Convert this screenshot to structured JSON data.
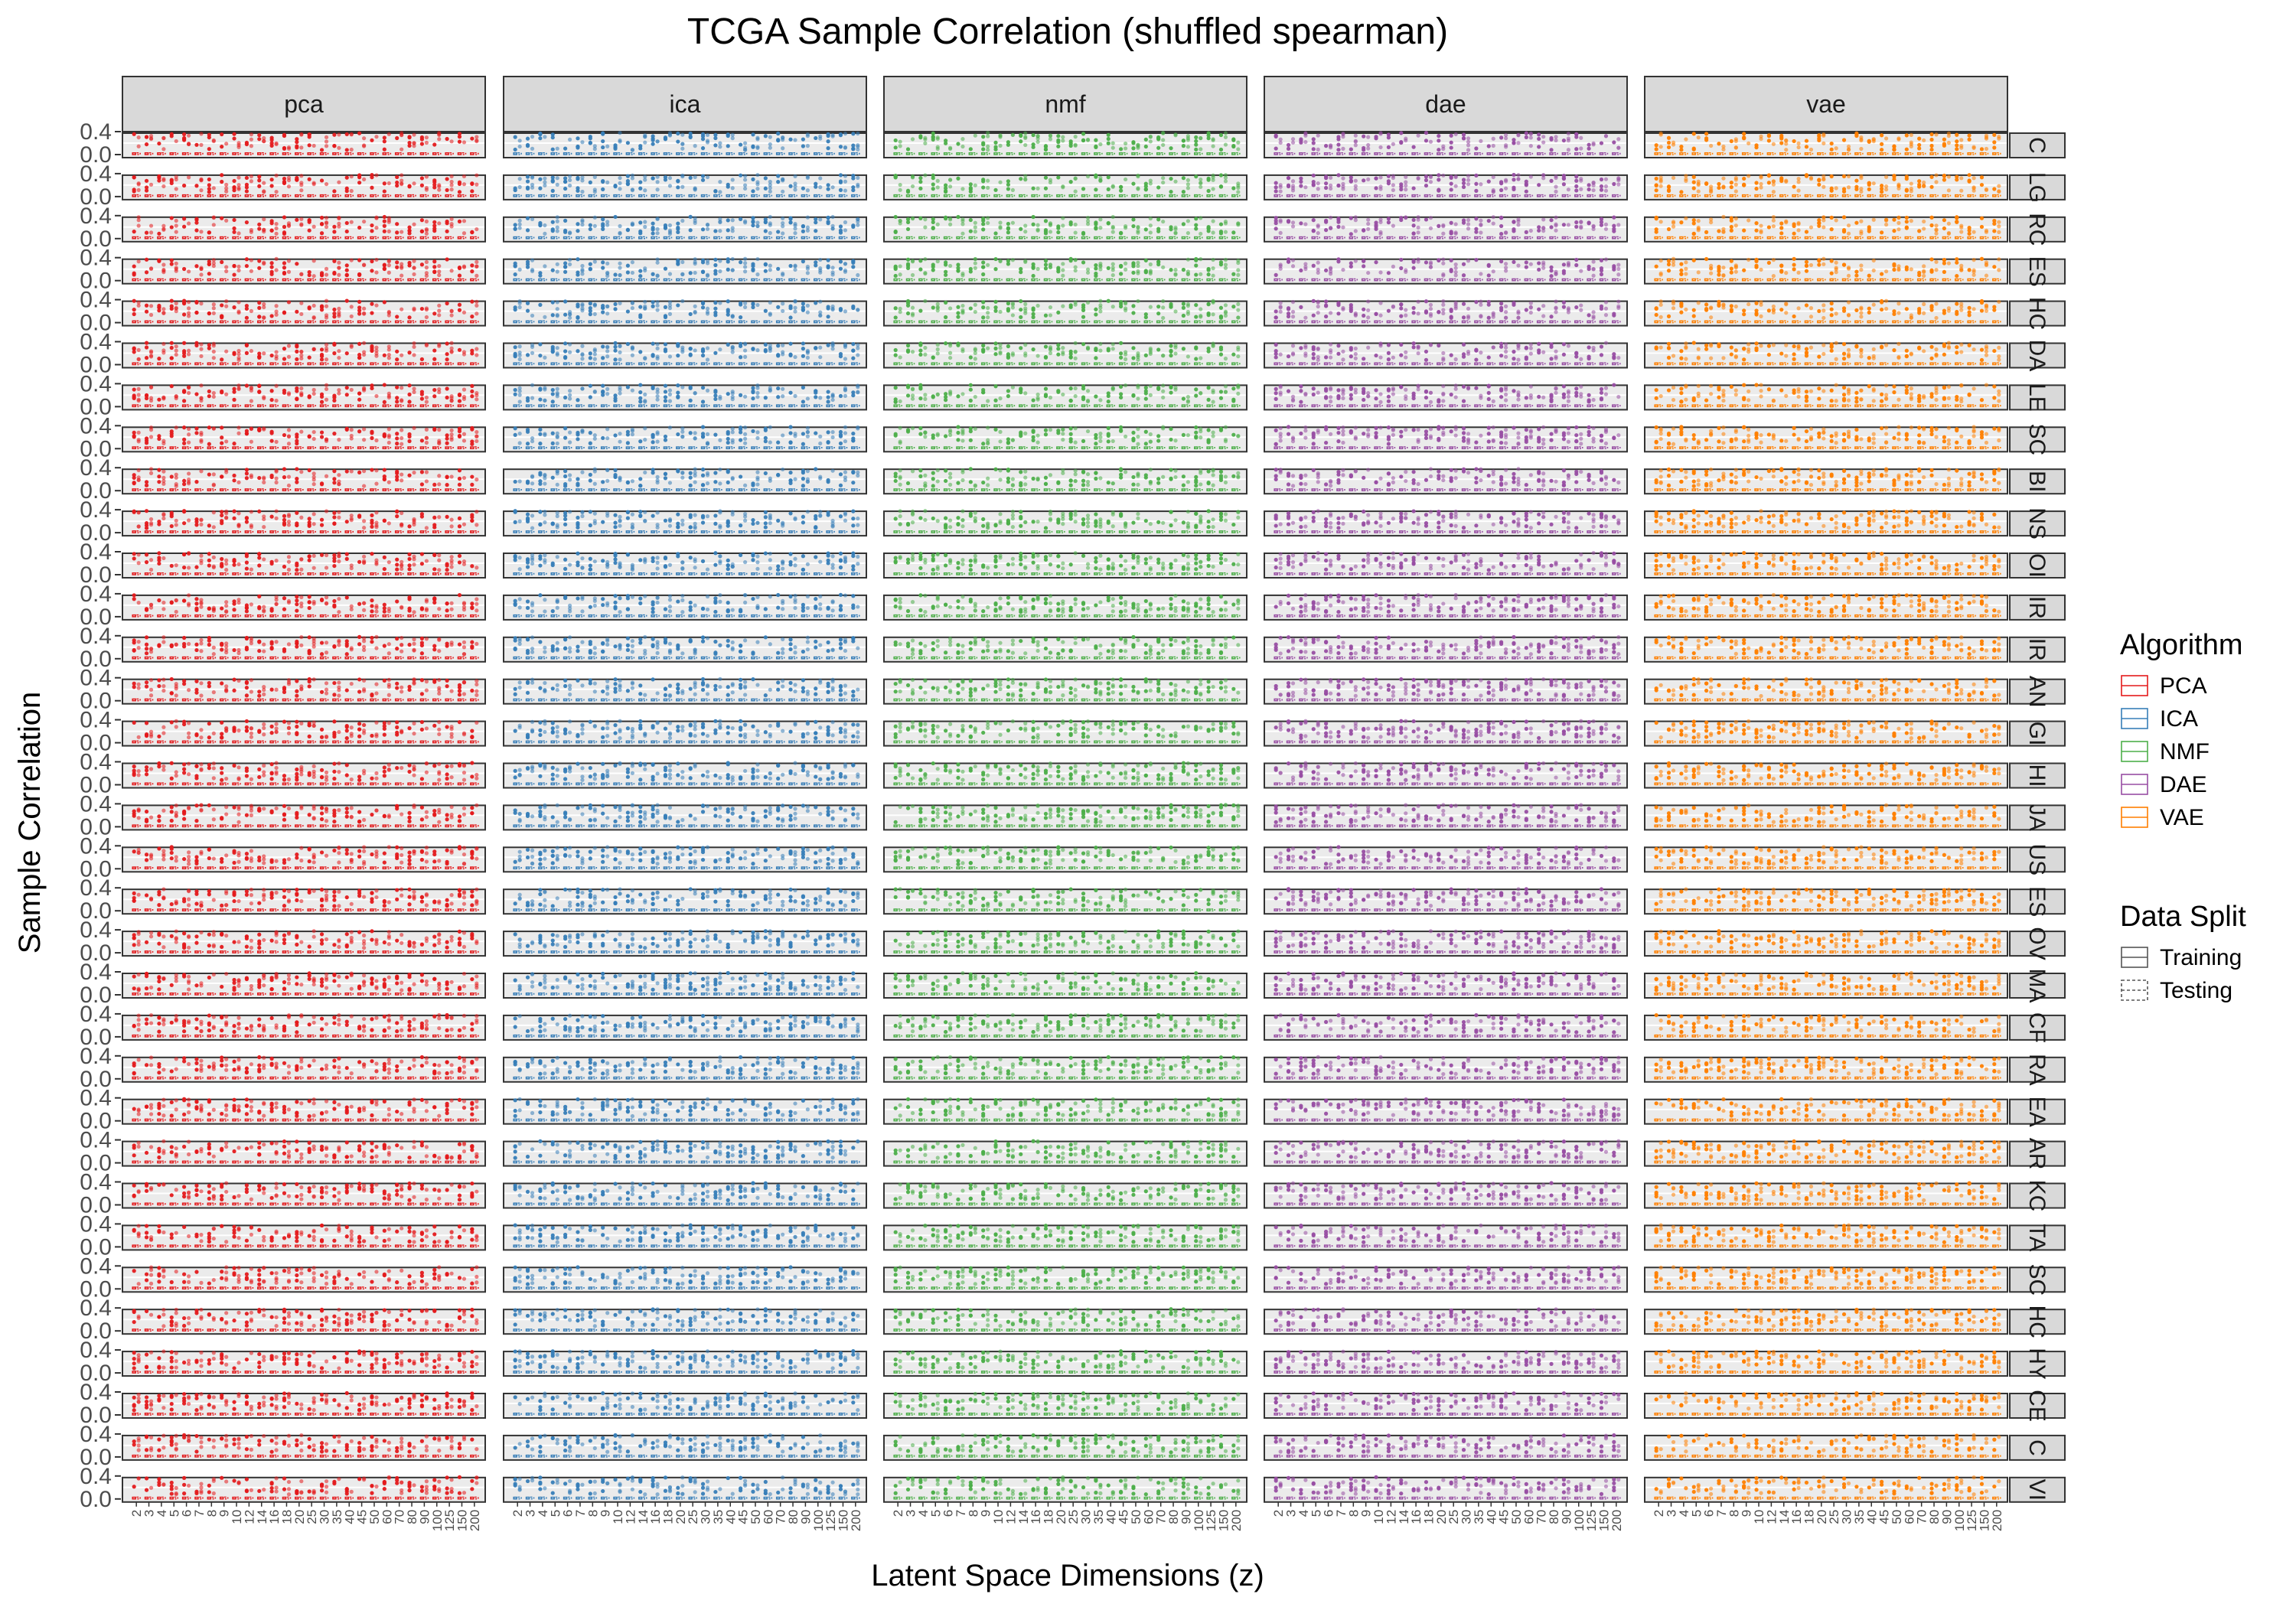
{
  "chart_data": {
    "type": "box",
    "title": "TCGA Sample Correlation (shuffled spearman)",
    "xlabel": "Latent Space Dimensions (z)",
    "ylabel": "Sample Correlation",
    "ylim": [
      0.0,
      0.4
    ],
    "y_ticks": [
      "0.0",
      "0.4"
    ],
    "x_ticks": [
      "2",
      "3",
      "4",
      "5",
      "6",
      "7",
      "8",
      "9",
      "10",
      "12",
      "14",
      "16",
      "18",
      "20",
      "25",
      "30",
      "35",
      "40",
      "45",
      "50",
      "60",
      "70",
      "80",
      "90",
      "100",
      "125",
      "150",
      "200"
    ],
    "algorithms": [
      "pca",
      "ica",
      "nmf",
      "dae",
      "vae"
    ],
    "algorithm_colors": {
      "pca": "#e41a1c",
      "ica": "#377eb8",
      "nmf": "#4daf4a",
      "dae": "#984ea3",
      "vae": "#ff7f00"
    },
    "cancer_type_strips": [
      "C",
      "LG",
      "RC",
      "ES",
      "HC",
      "DA",
      "LE",
      "SC",
      "BI",
      "NS",
      "OI",
      "IR",
      "IR",
      "AN",
      "GI",
      "HI",
      "JA",
      "US",
      "ES",
      "OV",
      "MA",
      "CF",
      "RA",
      "EA",
      "AR",
      "KC",
      "TA",
      "SC",
      "HC",
      "HY",
      "CE",
      "C",
      "VI"
    ],
    "series_summary": "Each panel shows paired training (solid) and testing (dashed) boxplots of shuffled spearman sample correlations per latent dimension; values lie near 0.0 with outliers reaching approximately 0.2-0.4."
  },
  "legend": {
    "algorithm_title": "Algorithm",
    "algorithm_items": [
      "PCA",
      "ICA",
      "NMF",
      "DAE",
      "VAE"
    ],
    "split_title": "Data Split",
    "split_items": [
      "Training",
      "Testing"
    ]
  }
}
